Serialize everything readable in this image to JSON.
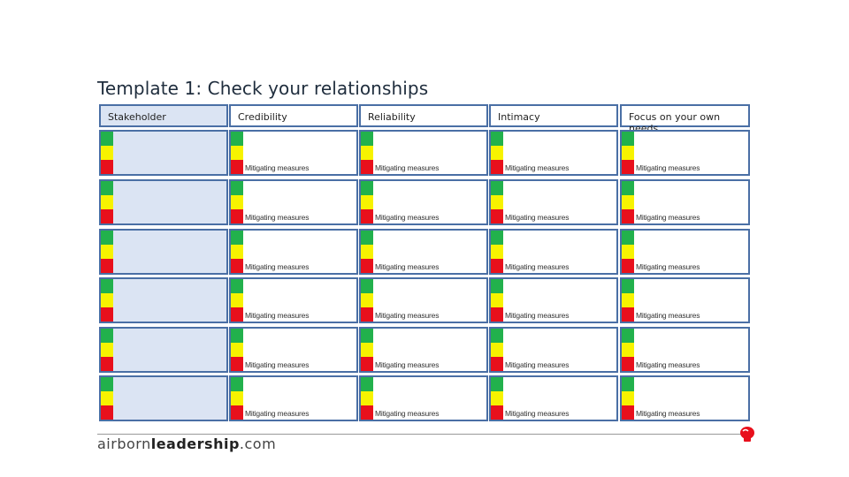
{
  "title": "Template 1: Check your relationships",
  "headers": [
    "Stakeholder",
    "Credibility",
    "Reliability",
    "Intimacy",
    "Focus on your own needs"
  ],
  "mitigating_label": "Mitigating measures",
  "row_count": 6,
  "rag_colors": {
    "green": "#22b14c",
    "yellow": "#f7f300",
    "red": "#e8101c"
  },
  "footer": {
    "logo_prefix": "airborn",
    "logo_bold": "leadership",
    "logo_suffix": ".com"
  },
  "brand_icon": "boxing-glove-icon"
}
